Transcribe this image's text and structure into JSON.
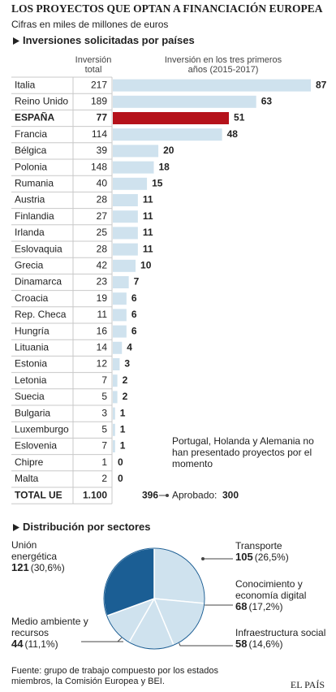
{
  "header": {
    "title": "LOS PROYECTOS QUE OPTAN A FINANCIACIÓN EUROPEA",
    "subtitle": "Cifras en miles de millones de euros"
  },
  "chart_data": [
    {
      "type": "bar",
      "orientation": "horizontal",
      "title": "Inversiones solicitadas por países",
      "total_header": "Inversión total",
      "values_header": "Inversión en los tres primeros años (2015-2017)",
      "categories": [
        "Italia",
        "Reino Unido",
        "ESPAÑA",
        "Francia",
        "Bélgica",
        "Polonia",
        "Rumania",
        "Austria",
        "Finlandia",
        "Irlanda",
        "Eslovaquia",
        "Grecia",
        "Dinamarca",
        "Croacia",
        "Rep. Checa",
        "Hungría",
        "Lituania",
        "Estonia",
        "Letonia",
        "Suecia",
        "Bulgaria",
        "Luxemburgo",
        "Eslovenia",
        "Chipre",
        "Malta"
      ],
      "totals": [
        217,
        189,
        77,
        114,
        39,
        148,
        40,
        28,
        27,
        25,
        28,
        42,
        23,
        19,
        11,
        16,
        14,
        12,
        7,
        5,
        3,
        5,
        7,
        1,
        2
      ],
      "values": [
        87,
        63,
        51,
        48,
        20,
        18,
        15,
        11,
        11,
        11,
        11,
        10,
        7,
        6,
        6,
        6,
        4,
        3,
        2,
        2,
        1,
        1,
        1,
        0,
        0
      ],
      "colors": [
        "#cfe2ee",
        "#cfe2ee",
        "#b5121b",
        "#cfe2ee",
        "#cfe2ee",
        "#cfe2ee",
        "#cfe2ee",
        "#cfe2ee",
        "#cfe2ee",
        "#cfe2ee",
        "#cfe2ee",
        "#cfe2ee",
        "#cfe2ee",
        "#cfe2ee",
        "#cfe2ee",
        "#cfe2ee",
        "#cfe2ee",
        "#cfe2ee",
        "#cfe2ee",
        "#cfe2ee",
        "#cfe2ee",
        "#cfe2ee",
        "#cfe2ee",
        "#cfe2ee",
        "#cfe2ee"
      ],
      "total_row": {
        "label": "TOTAL UE",
        "total": {
          "value": 1100,
          "label": "1.100"
        },
        "value": 396,
        "approved_label": "Aprobado:",
        "approved": 300
      },
      "note": "Portugal, Holanda y Alemania no han presentado proyectos por el momento"
    },
    {
      "type": "pie",
      "title": "Distribución por sectores",
      "categories": [
        "Transporte",
        "Conocimiento y economía digital",
        "Infraestructura social",
        "Medio ambiente y recursos",
        "Unión energética"
      ],
      "values": [
        105,
        68,
        58,
        44,
        121
      ],
      "percents": [
        {
          "value": 26.5,
          "label": "(26,5%)"
        },
        {
          "value": 17.2,
          "label": "(17,2%)"
        },
        {
          "value": 14.6,
          "label": "(14,6%)"
        },
        {
          "value": 11.1,
          "label": "(11,1%)"
        },
        {
          "value": 30.6,
          "label": "(30,6%)"
        }
      ],
      "colors": [
        "#cfe2ee",
        "#cfe2ee",
        "#cfe2ee",
        "#cfe2ee",
        "#1b5e94"
      ]
    }
  ],
  "footer": {
    "source": "Fuente: grupo de trabajo compuesto por los estados miembros, la Comisión Europea y BEI.",
    "brand": "EL PAÍS"
  }
}
